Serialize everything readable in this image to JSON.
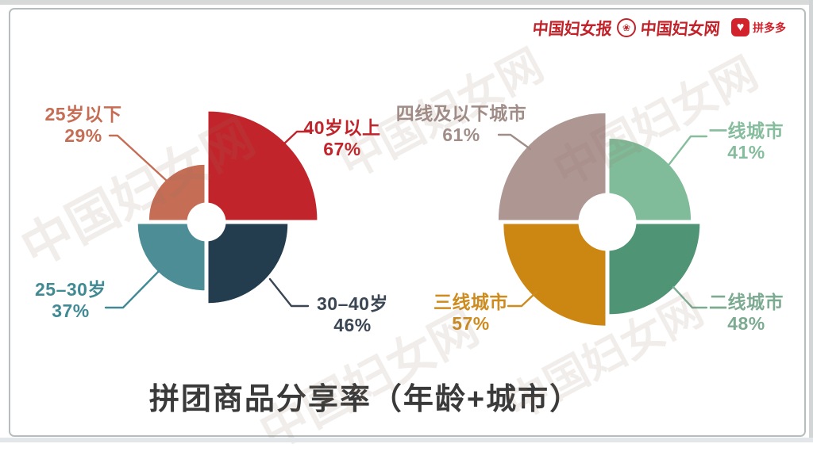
{
  "caption": {
    "text": "拼团商品分享率（年龄+城市）"
  },
  "logos": {
    "news_text": "中国妇女报",
    "web_text": "中国妇女网",
    "pdd_text": "拼多多"
  },
  "icons": {
    "pdd_heart": "♥",
    "federation_flower": "❀"
  },
  "watermark": {
    "text": "中国妇女网"
  },
  "colors": {
    "logo_red": "#c2232a",
    "title_text": "#3a3a3a",
    "card_border": "#b7bdbf"
  },
  "chart_data": [
    {
      "type": "pie",
      "variant": "quadrant-rose-donut",
      "group": "年龄",
      "value_unit": "%",
      "legend_position": "callout-labels",
      "slices": [
        {
          "label": "25岁以下",
          "value": 29,
          "quadrant": "top-left",
          "color": "#c56e55",
          "label_color": "#c56e55"
        },
        {
          "label": "40岁以上",
          "value": 67,
          "quadrant": "top-right",
          "color": "#c1242b",
          "label_color": "#c1242b"
        },
        {
          "label": "30–40岁",
          "value": 46,
          "quadrant": "bottom-right",
          "color": "#233c4e",
          "label_color": "#3a4654"
        },
        {
          "label": "25–30岁",
          "value": 37,
          "quadrant": "bottom-left",
          "color": "#4d8d96",
          "label_color": "#418a94"
        }
      ]
    },
    {
      "type": "pie",
      "variant": "quadrant-rose-donut",
      "group": "城市",
      "value_unit": "%",
      "legend_position": "callout-labels",
      "slices": [
        {
          "label": "四线及以下城市",
          "value": 61,
          "quadrant": "top-left",
          "color": "#ae9693",
          "label_color": "#a18d88"
        },
        {
          "label": "一线城市",
          "value": 41,
          "quadrant": "top-right",
          "color": "#80bc99",
          "label_color": "#85bd9d"
        },
        {
          "label": "二线城市",
          "value": 48,
          "quadrant": "bottom-right",
          "color": "#4f9474",
          "label_color": "#7dab92"
        },
        {
          "label": "三线城市",
          "value": 57,
          "quadrant": "bottom-left",
          "color": "#cc8712",
          "label_color": "#cd8c20"
        }
      ]
    }
  ]
}
